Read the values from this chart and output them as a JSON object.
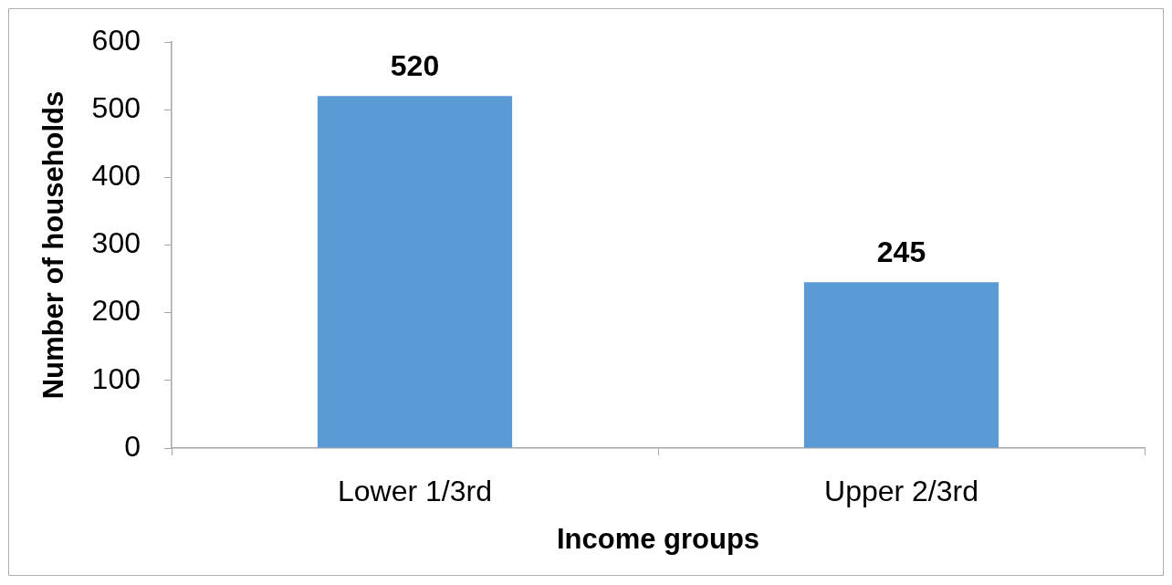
{
  "chart_data": {
    "type": "bar",
    "xlabel": "Income groups",
    "ylabel": "Number of households",
    "categories": [
      "Lower 1/3rd",
      "Upper 2/3rd"
    ],
    "values": [
      520,
      245
    ],
    "color": "#5b9bd5",
    "ylim": [
      0,
      600
    ],
    "yticks": [
      0,
      100,
      200,
      300,
      400,
      500,
      600
    ],
    "data_labels": true,
    "legend": false
  }
}
